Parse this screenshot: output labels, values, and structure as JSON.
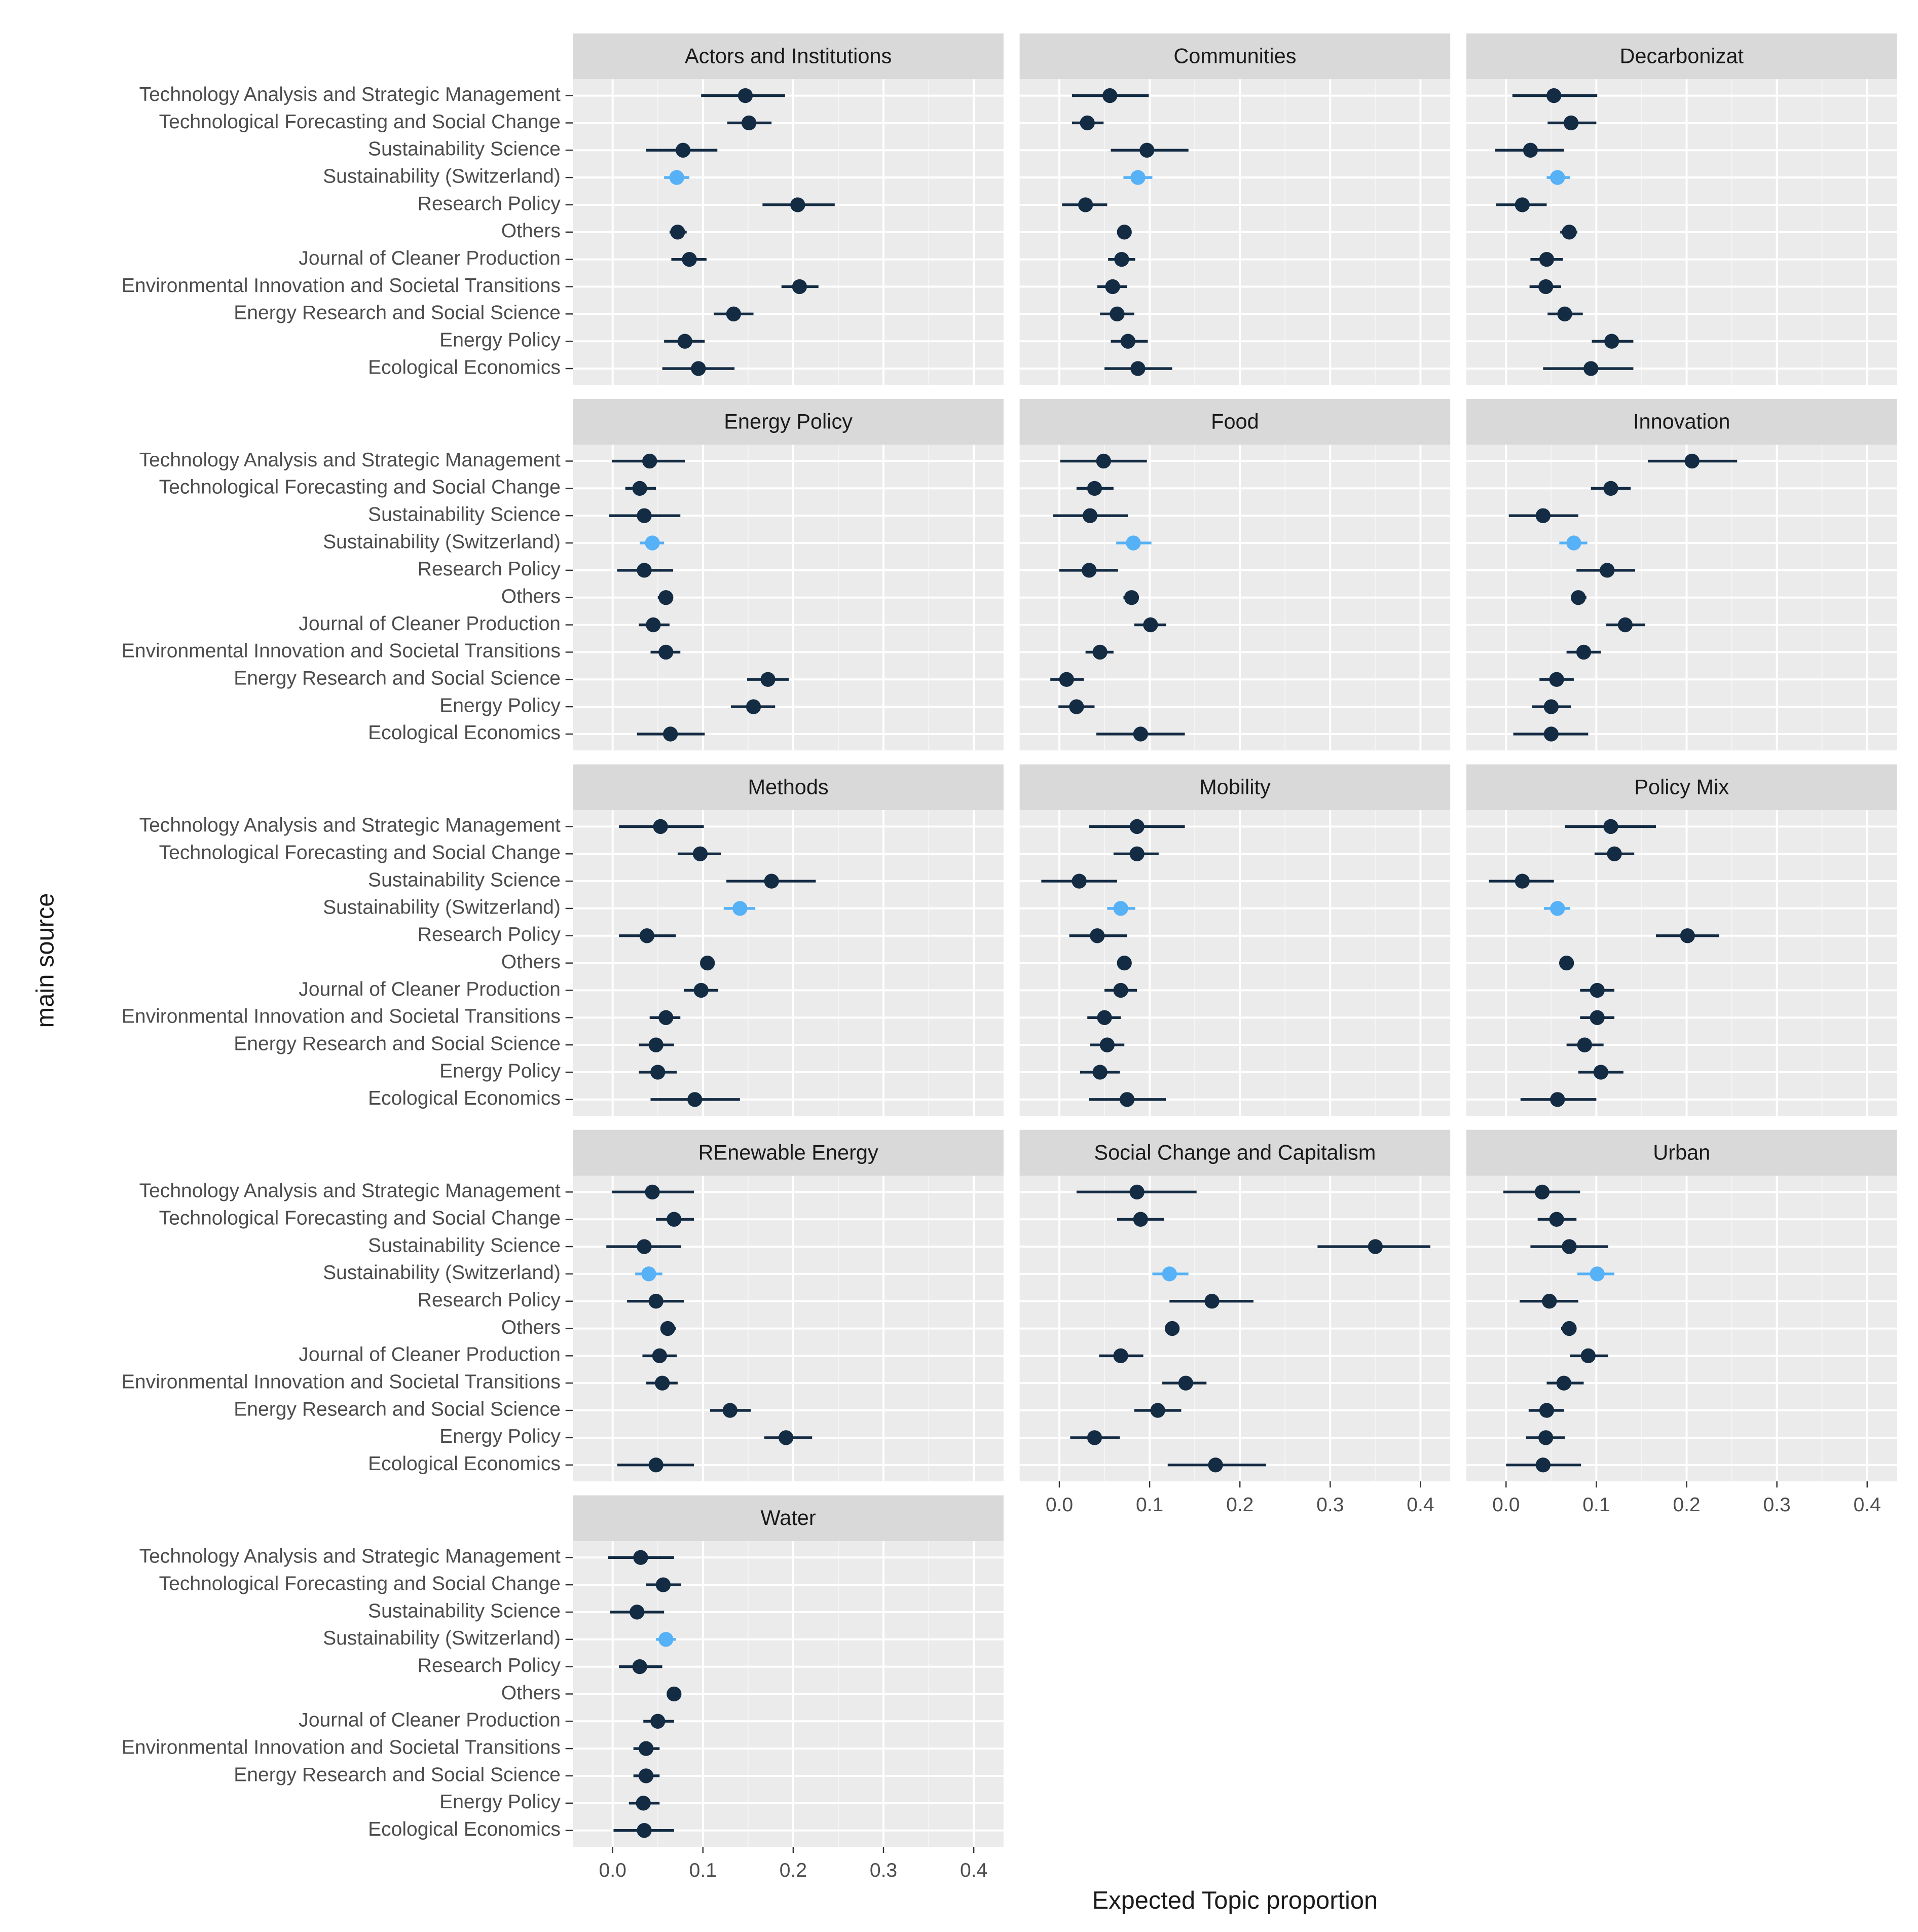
{
  "chart_data": {
    "type": "pointrange",
    "xlabel": "Expected Topic proportion",
    "ylabel": "main source",
    "categories": [
      "Technology Analysis and Strategic Management",
      "Technological Forecasting and Social Change",
      "Sustainability Science",
      "Sustainability (Switzerland)",
      "Research Policy",
      "Others",
      "Journal of Cleaner Production",
      "Environmental Innovation and Societal Transitions",
      "Energy Research and Social Science",
      "Energy Policy",
      "Ecological Economics"
    ],
    "point_colors": [
      "#132b43",
      "#132b43",
      "#132b43",
      "#56b1f7",
      "#132b43",
      "#132b43",
      "#132b43",
      "#132b43",
      "#132b43",
      "#132b43",
      "#132b43"
    ],
    "xlim": [
      -0.044,
      0.433
    ],
    "xticks": [
      {
        "value": 0,
        "label": "0.0"
      },
      0.1,
      0.2,
      0.3,
      0.4
    ],
    "xminor": [
      0.05,
      0.15,
      0.25,
      0.35
    ],
    "grid": true,
    "panels": [
      {
        "title": "Actors and Institutions",
        "values": [
          0.147,
          0.151,
          0.078,
          0.071,
          0.205,
          0.072,
          0.085,
          0.207,
          0.134,
          0.08,
          0.095
        ],
        "lower": [
          0.098,
          0.127,
          0.037,
          0.057,
          0.166,
          0.063,
          0.065,
          0.187,
          0.112,
          0.057,
          0.055
        ],
        "upper": [
          0.191,
          0.176,
          0.116,
          0.085,
          0.246,
          0.082,
          0.104,
          0.228,
          0.156,
          0.102,
          0.135
        ]
      },
      {
        "title": "Communities",
        "values": [
          0.056,
          0.031,
          0.097,
          0.087,
          0.029,
          0.072,
          0.069,
          0.059,
          0.064,
          0.076,
          0.087
        ],
        "lower": [
          0.014,
          0.014,
          0.057,
          0.071,
          0.003,
          0.064,
          0.054,
          0.042,
          0.045,
          0.057,
          0.05
        ],
        "upper": [
          0.099,
          0.049,
          0.143,
          0.103,
          0.053,
          0.08,
          0.084,
          0.075,
          0.083,
          0.098,
          0.125
        ]
      },
      {
        "title": "Decarbonizat",
        "values": [
          0.053,
          0.072,
          0.027,
          0.057,
          0.018,
          0.07,
          0.045,
          0.044,
          0.065,
          0.117,
          0.094
        ],
        "lower": [
          0.007,
          0.046,
          -0.012,
          0.045,
          -0.011,
          0.06,
          0.027,
          0.026,
          0.046,
          0.095,
          0.041
        ],
        "upper": [
          0.101,
          0.1,
          0.064,
          0.071,
          0.045,
          0.079,
          0.063,
          0.061,
          0.085,
          0.141,
          0.141
        ]
      },
      {
        "title": "Energy Policy",
        "values": [
          0.041,
          0.03,
          0.035,
          0.044,
          0.035,
          0.059,
          0.045,
          0.059,
          0.172,
          0.156,
          0.064
        ],
        "lower": [
          -0.001,
          0.014,
          -0.004,
          0.03,
          0.005,
          0.05,
          0.029,
          0.042,
          0.149,
          0.131,
          0.027
        ],
        "upper": [
          0.08,
          0.048,
          0.075,
          0.057,
          0.067,
          0.067,
          0.063,
          0.075,
          0.195,
          0.18,
          0.102
        ]
      },
      {
        "title": "Food",
        "values": [
          0.049,
          0.039,
          0.034,
          0.082,
          0.033,
          0.08,
          0.101,
          0.045,
          0.008,
          0.019,
          0.09
        ],
        "lower": [
          0.001,
          0.019,
          -0.007,
          0.063,
          0.0,
          0.071,
          0.083,
          0.029,
          -0.01,
          -0.001,
          0.041
        ],
        "upper": [
          0.097,
          0.06,
          0.076,
          0.102,
          0.065,
          0.088,
          0.118,
          0.06,
          0.027,
          0.039,
          0.139
        ]
      },
      {
        "title": "Innovation",
        "values": [
          0.206,
          0.116,
          0.041,
          0.075,
          0.112,
          0.08,
          0.132,
          0.086,
          0.056,
          0.05,
          0.05
        ],
        "lower": [
          0.157,
          0.094,
          0.003,
          0.059,
          0.078,
          0.074,
          0.111,
          0.067,
          0.037,
          0.029,
          0.008
        ],
        "upper": [
          0.256,
          0.138,
          0.08,
          0.09,
          0.143,
          0.089,
          0.154,
          0.105,
          0.075,
          0.072,
          0.091
        ]
      },
      {
        "title": "Methods",
        "values": [
          0.053,
          0.097,
          0.176,
          0.141,
          0.038,
          0.105,
          0.098,
          0.059,
          0.048,
          0.05,
          0.091
        ],
        "lower": [
          0.007,
          0.072,
          0.126,
          0.123,
          0.007,
          0.098,
          0.079,
          0.041,
          0.029,
          0.029,
          0.042
        ],
        "upper": [
          0.101,
          0.12,
          0.225,
          0.158,
          0.07,
          0.113,
          0.117,
          0.075,
          0.068,
          0.071,
          0.141
        ]
      },
      {
        "title": "Mobility",
        "values": [
          0.086,
          0.086,
          0.022,
          0.068,
          0.042,
          0.072,
          0.068,
          0.05,
          0.053,
          0.045,
          0.075
        ],
        "lower": [
          0.033,
          0.06,
          -0.02,
          0.053,
          0.011,
          0.064,
          0.05,
          0.031,
          0.034,
          0.023,
          0.033
        ],
        "upper": [
          0.139,
          0.11,
          0.064,
          0.084,
          0.075,
          0.079,
          0.086,
          0.068,
          0.072,
          0.067,
          0.118
        ]
      },
      {
        "title": "Policy Mix",
        "values": [
          0.116,
          0.12,
          0.018,
          0.057,
          0.201,
          0.067,
          0.101,
          0.101,
          0.087,
          0.105,
          0.057
        ],
        "lower": [
          0.065,
          0.098,
          -0.019,
          0.042,
          0.166,
          0.06,
          0.082,
          0.082,
          0.067,
          0.08,
          0.016
        ],
        "upper": [
          0.166,
          0.142,
          0.053,
          0.071,
          0.236,
          0.075,
          0.12,
          0.12,
          0.108,
          0.13,
          0.1
        ]
      },
      {
        "title": "REnewable Energy",
        "values": [
          0.044,
          0.068,
          0.035,
          0.04,
          0.048,
          0.061,
          0.052,
          0.055,
          0.13,
          0.192,
          0.048
        ],
        "lower": [
          -0.001,
          0.048,
          -0.007,
          0.025,
          0.016,
          0.053,
          0.033,
          0.037,
          0.108,
          0.168,
          0.005
        ],
        "upper": [
          0.09,
          0.09,
          0.076,
          0.055,
          0.079,
          0.07,
          0.071,
          0.072,
          0.153,
          0.221,
          0.09
        ]
      },
      {
        "title": "Social Change and Capitalism",
        "values": [
          0.086,
          0.09,
          0.35,
          0.122,
          0.169,
          0.125,
          0.068,
          0.14,
          0.109,
          0.039,
          0.173
        ],
        "lower": [
          0.019,
          0.064,
          0.286,
          0.103,
          0.122,
          0.117,
          0.044,
          0.114,
          0.083,
          0.012,
          0.12
        ],
        "upper": [
          0.152,
          0.116,
          0.411,
          0.143,
          0.215,
          0.133,
          0.093,
          0.163,
          0.135,
          0.067,
          0.229
        ]
      },
      {
        "title": "Urban",
        "values": [
          0.04,
          0.056,
          0.07,
          0.101,
          0.048,
          0.07,
          0.091,
          0.064,
          0.045,
          0.044,
          0.041
        ],
        "lower": [
          -0.003,
          0.035,
          0.027,
          0.079,
          0.015,
          0.061,
          0.071,
          0.045,
          0.025,
          0.022,
          0.0
        ],
        "upper": [
          0.082,
          0.078,
          0.113,
          0.12,
          0.08,
          0.078,
          0.113,
          0.086,
          0.064,
          0.065,
          0.083
        ]
      },
      {
        "title": "Water",
        "values": [
          0.031,
          0.056,
          0.027,
          0.059,
          0.03,
          0.068,
          0.05,
          0.037,
          0.037,
          0.034,
          0.035
        ],
        "lower": [
          -0.005,
          0.037,
          -0.003,
          0.048,
          0.007,
          0.061,
          0.034,
          0.023,
          0.023,
          0.018,
          0.001
        ],
        "upper": [
          0.068,
          0.076,
          0.057,
          0.07,
          0.055,
          0.075,
          0.068,
          0.052,
          0.052,
          0.052,
          0.068
        ]
      }
    ]
  }
}
